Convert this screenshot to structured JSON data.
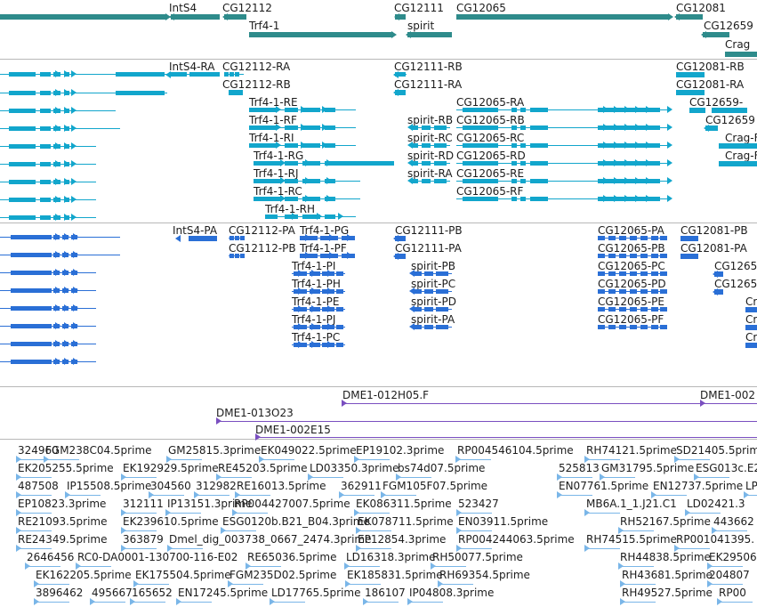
{
  "tracks": {
    "genes": [
      {
        "label": "IntS4"
      },
      {
        "label": "CG12112"
      },
      {
        "label": "CG12111"
      },
      {
        "label": "CG12065"
      },
      {
        "label": "CG12081"
      },
      {
        "label": "Trf4-1"
      },
      {
        "label": "spirit"
      },
      {
        "label": "CG12659"
      },
      {
        "label": "Crag"
      }
    ],
    "transcripts": [
      {
        "label": "IntS4-RA"
      },
      {
        "label": "CG12112-RA"
      },
      {
        "label": "CG12112-RB"
      },
      {
        "label": "CG12111-RB"
      },
      {
        "label": "CG12111-RA"
      },
      {
        "label": "CG12081-RB"
      },
      {
        "label": "CG12081-RA"
      },
      {
        "label": "Trf4-1-RE"
      },
      {
        "label": "Trf4-1-RF"
      },
      {
        "label": "Trf4-1-RI"
      },
      {
        "label": "Trf4-1-RG"
      },
      {
        "label": "Trf4-1-RJ"
      },
      {
        "label": "Trf4-1-RC"
      },
      {
        "label": "Trf4-1-RH"
      },
      {
        "label": "spirit-RB"
      },
      {
        "label": "spirit-RC"
      },
      {
        "label": "spirit-RD"
      },
      {
        "label": "spirit-RA"
      },
      {
        "label": "CG12065-RA"
      },
      {
        "label": "CG12065-RB"
      },
      {
        "label": "CG12065-RC"
      },
      {
        "label": "CG12065-RD"
      },
      {
        "label": "CG12065-RE"
      },
      {
        "label": "CG12065-RF"
      },
      {
        "label": "CG12659-"
      },
      {
        "label": "CG12659"
      },
      {
        "label": "Crag-F"
      },
      {
        "label": "Crag-F"
      }
    ],
    "proteins": [
      {
        "label": "IntS4-PA"
      },
      {
        "label": "CG12112-PA"
      },
      {
        "label": "CG12112-PB"
      },
      {
        "label": "Trf4-1-PG"
      },
      {
        "label": "Trf4-1-PF"
      },
      {
        "label": "Trf4-1-PI"
      },
      {
        "label": "Trf4-1-PH"
      },
      {
        "label": "Trf4-1-PE"
      },
      {
        "label": "Trf4-1-PJ"
      },
      {
        "label": "Trf4-1-PC"
      },
      {
        "label": "CG12111-PB"
      },
      {
        "label": "CG12111-PA"
      },
      {
        "label": "spirit-PB"
      },
      {
        "label": "spirit-PC"
      },
      {
        "label": "spirit-PD"
      },
      {
        "label": "spirit-PA"
      },
      {
        "label": "CG12065-PA"
      },
      {
        "label": "CG12065-PB"
      },
      {
        "label": "CG12065-PC"
      },
      {
        "label": "CG12065-PD"
      },
      {
        "label": "CG12065-PE"
      },
      {
        "label": "CG12065-PF"
      },
      {
        "label": "CG12081-PB"
      },
      {
        "label": "CG12081-PA"
      },
      {
        "label": "CG1265"
      },
      {
        "label": "CG1265"
      },
      {
        "label": "Cr"
      },
      {
        "label": "Cr"
      },
      {
        "label": "Cr"
      }
    ],
    "clones": [
      {
        "label": "DME1-012H05.F"
      },
      {
        "label": "DME1-002"
      },
      {
        "label": "DME1-013O23"
      },
      {
        "label": "DME1-002E15"
      }
    ],
    "ests": [
      {
        "label": "324960"
      },
      {
        "label": "FGM238C04.5prime"
      },
      {
        "label": "GM25815.3prime"
      },
      {
        "label": "EK049022.5prime"
      },
      {
        "label": "EP19102.3prime"
      },
      {
        "label": "RP004546104.5prime"
      },
      {
        "label": "RH74121.5prime"
      },
      {
        "label": "SD21405.5prime"
      },
      {
        "label": "EK205255.5prime"
      },
      {
        "label": "EK192929.5prime"
      },
      {
        "label": "RE45203.5prime"
      },
      {
        "label": "LD03350.3prime"
      },
      {
        "label": "bs74d07.5prime"
      },
      {
        "label": "525813"
      },
      {
        "label": "GM31795.5prime"
      },
      {
        "label": "ESG013c.E2"
      },
      {
        "label": "487508"
      },
      {
        "label": "IP15508.5prime"
      },
      {
        "label": "304560"
      },
      {
        "label": "312982"
      },
      {
        "label": "RE16013.5prime"
      },
      {
        "label": "362911"
      },
      {
        "label": "FGM105F07.5prime"
      },
      {
        "label": "EN07761.5prime"
      },
      {
        "label": "EN12737.5prime"
      },
      {
        "label": "LP"
      },
      {
        "label": "EP10823.3prime"
      },
      {
        "label": "312111"
      },
      {
        "label": "IP13151.3prime"
      },
      {
        "label": "RP004427007.5prime"
      },
      {
        "label": "EK086311.5prime"
      },
      {
        "label": "523427"
      },
      {
        "label": "MB6A.1_1.J21.C1"
      },
      {
        "label": "LD02421.3"
      },
      {
        "label": "RE21093.5prime"
      },
      {
        "label": "EK239610.5prime"
      },
      {
        "label": "ESG0120b.B21_B04.3prime"
      },
      {
        "label": "EK078711.5prime"
      },
      {
        "label": "EN03911.5prime"
      },
      {
        "label": "RH52167.5prime"
      },
      {
        "label": "443662"
      },
      {
        "label": "RE24349.5prime"
      },
      {
        "label": "363879"
      },
      {
        "label": "Dmel_dig_003738_0667_2474.3prime"
      },
      {
        "label": "EP12854.3prime"
      },
      {
        "label": "RP004244063.5prime"
      },
      {
        "label": "RH74515.5prime"
      },
      {
        "label": "RP001041395."
      },
      {
        "label": "2646456"
      },
      {
        "label": "RC0-DA0001-130700-116-E02"
      },
      {
        "label": "RE65036.5prime"
      },
      {
        "label": "LD16318.3prime"
      },
      {
        "label": "RH50077.5prime"
      },
      {
        "label": "RH44838.5prime"
      },
      {
        "label": "EK29506"
      },
      {
        "label": "EK162205.5prime"
      },
      {
        "label": "EK175504.5prime"
      },
      {
        "label": "FGM235D02.5prime"
      },
      {
        "label": "EK185831.5prime"
      },
      {
        "label": "RH69354.5prime"
      },
      {
        "label": "RH43681.5prime"
      },
      {
        "label": "204807"
      },
      {
        "label": "3896462"
      },
      {
        "label": "495667"
      },
      {
        "label": "165652"
      },
      {
        "label": "EN17245.5prime"
      },
      {
        "label": "LD17765.5prime"
      },
      {
        "label": "186107"
      },
      {
        "label": "IP04808.3prime"
      },
      {
        "label": "RH49527.5prime"
      },
      {
        "label": "RP00"
      }
    ]
  },
  "colors": {
    "gene": "#2e8b8b",
    "transcript": "#12a6cc",
    "protein": "#2a6fd6",
    "clone": "#7a4fc0",
    "est": "#7ab6e8",
    "separator": "#b8b8b8"
  }
}
